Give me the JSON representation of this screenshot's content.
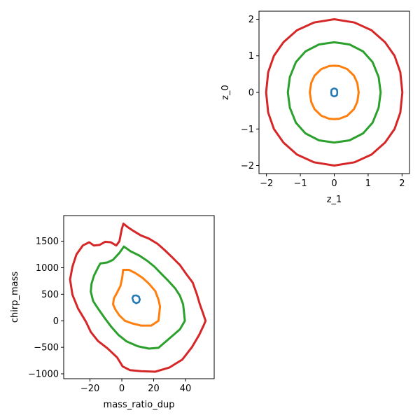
{
  "chart_data": [
    {
      "type": "scatter",
      "title": "",
      "xlabel": "z_1",
      "ylabel": "z_0",
      "xlim": [
        -2.22,
        2.22
      ],
      "ylim": [
        -2.22,
        2.22
      ],
      "xticks": [
        -2,
        -1,
        0,
        1,
        2
      ],
      "yticks": [
        -2,
        -1,
        0,
        1,
        2
      ],
      "xtick_labels": [
        "−2",
        "−1",
        "0",
        "1",
        "2"
      ],
      "ytick_labels": [
        "−2",
        "−1",
        "0",
        "1",
        "2"
      ],
      "grid": false,
      "series": [
        {
          "color": "#1f77b4",
          "points": [
            [
              0.09,
              0.0
            ],
            [
              0.08,
              0.07
            ],
            [
              0.04,
              0.1
            ],
            [
              0.0,
              0.11
            ],
            [
              -0.04,
              0.1
            ],
            [
              -0.08,
              0.07
            ],
            [
              -0.09,
              0.0
            ],
            [
              -0.08,
              -0.07
            ],
            [
              -0.04,
              -0.1
            ],
            [
              0.0,
              -0.11
            ],
            [
              0.04,
              -0.1
            ],
            [
              0.08,
              -0.07
            ],
            [
              0.09,
              0.0
            ]
          ]
        },
        {
          "color": "#ff7f0e",
          "points": [
            [
              0.72,
              0.0
            ],
            [
              0.68,
              0.26
            ],
            [
              0.58,
              0.46
            ],
            [
              0.38,
              0.64
            ],
            [
              0.15,
              0.72
            ],
            [
              0.0,
              0.73
            ],
            [
              -0.15,
              0.72
            ],
            [
              -0.38,
              0.64
            ],
            [
              -0.58,
              0.46
            ],
            [
              -0.68,
              0.26
            ],
            [
              -0.72,
              0.0
            ],
            [
              -0.68,
              -0.26
            ],
            [
              -0.58,
              -0.46
            ],
            [
              -0.38,
              -0.64
            ],
            [
              -0.15,
              -0.72
            ],
            [
              0.0,
              -0.73
            ],
            [
              0.15,
              -0.72
            ],
            [
              0.38,
              -0.64
            ],
            [
              0.58,
              -0.46
            ],
            [
              0.68,
              -0.26
            ],
            [
              0.72,
              0.0
            ]
          ]
        },
        {
          "color": "#2ca02c",
          "points": [
            [
              1.37,
              0.0
            ],
            [
              1.31,
              0.42
            ],
            [
              1.13,
              0.83
            ],
            [
              0.85,
              1.12
            ],
            [
              0.45,
              1.31
            ],
            [
              0.0,
              1.37
            ],
            [
              -0.45,
              1.31
            ],
            [
              -0.85,
              1.12
            ],
            [
              -1.13,
              0.83
            ],
            [
              -1.31,
              0.42
            ],
            [
              -1.37,
              0.0
            ],
            [
              -1.31,
              -0.42
            ],
            [
              -1.13,
              -0.83
            ],
            [
              -0.85,
              -1.12
            ],
            [
              -0.45,
              -1.31
            ],
            [
              0.0,
              -1.37
            ],
            [
              0.45,
              -1.31
            ],
            [
              0.85,
              -1.12
            ],
            [
              1.13,
              -0.83
            ],
            [
              1.31,
              -0.42
            ],
            [
              1.37,
              0.0
            ]
          ]
        },
        {
          "color": "#d62728",
          "points": [
            [
              2.01,
              0.0
            ],
            [
              1.95,
              0.55
            ],
            [
              1.78,
              1.0
            ],
            [
              1.5,
              1.37
            ],
            [
              1.1,
              1.7
            ],
            [
              0.6,
              1.91
            ],
            [
              0.0,
              2.0
            ],
            [
              -0.6,
              1.91
            ],
            [
              -1.1,
              1.7
            ],
            [
              -1.5,
              1.37
            ],
            [
              -1.78,
              1.0
            ],
            [
              -1.95,
              0.55
            ],
            [
              -2.01,
              0.0
            ],
            [
              -1.95,
              -0.55
            ],
            [
              -1.78,
              -1.0
            ],
            [
              -1.5,
              -1.37
            ],
            [
              -1.1,
              -1.7
            ],
            [
              -0.6,
              -1.91
            ],
            [
              0.0,
              -2.0
            ],
            [
              0.6,
              -1.91
            ],
            [
              1.1,
              -1.7
            ],
            [
              1.5,
              -1.37
            ],
            [
              1.78,
              -1.0
            ],
            [
              1.95,
              -0.55
            ],
            [
              2.01,
              0.0
            ]
          ]
        }
      ]
    },
    {
      "type": "scatter",
      "title": "",
      "xlabel": "mass_ratio_dup",
      "ylabel": "chirp_mass",
      "xlim": [
        -36.5,
        58
      ],
      "ylim": [
        -1092,
        1983
      ],
      "xticks": [
        -20,
        0,
        20,
        40
      ],
      "yticks": [
        -1000,
        -500,
        0,
        500,
        1000,
        1500
      ],
      "xtick_labels": [
        "−20",
        "0",
        "20",
        "40"
      ],
      "ytick_labels": [
        "−1000",
        "−500",
        "0",
        "500",
        "1000",
        "1500"
      ],
      "grid": false,
      "series": [
        {
          "color": "#1f77b4",
          "points": [
            [
              6.6,
              430
            ],
            [
              7.3,
              470
            ],
            [
              9.0,
              480
            ],
            [
              10.7,
              455
            ],
            [
              11.3,
              400
            ],
            [
              10.7,
              350
            ],
            [
              9.0,
              330
            ],
            [
              7.3,
              360
            ],
            [
              6.6,
              430
            ]
          ]
        },
        {
          "color": "#ff7f0e",
          "points": [
            [
              0.8,
              960
            ],
            [
              4.5,
              960
            ],
            [
              8.5,
              900
            ],
            [
              13.0,
              810
            ],
            [
              17.0,
              700
            ],
            [
              21.0,
              560
            ],
            [
              23.0,
              400
            ],
            [
              24.0,
              270
            ],
            [
              23.5,
              130
            ],
            [
              23.0,
              0
            ],
            [
              18.5,
              -90
            ],
            [
              12.0,
              -90
            ],
            [
              6.5,
              -50
            ],
            [
              2.0,
              0
            ],
            [
              -1.5,
              100
            ],
            [
              -4.0,
              210
            ],
            [
              -5.5,
              310
            ],
            [
              -5.0,
              420
            ],
            [
              -3.0,
              530
            ],
            [
              -0.8,
              660
            ],
            [
              0.3,
              820
            ],
            [
              0.8,
              960
            ]
          ]
        },
        {
          "color": "#2ca02c",
          "points": [
            [
              1.3,
              1400
            ],
            [
              5.5,
              1310
            ],
            [
              11.0,
              1230
            ],
            [
              16.0,
              1130
            ],
            [
              20.5,
              1020
            ],
            [
              25.0,
              880
            ],
            [
              29.0,
              760
            ],
            [
              33.5,
              610
            ],
            [
              36.5,
              470
            ],
            [
              38.5,
              310
            ],
            [
              39.0,
              170
            ],
            [
              39.6,
              0
            ],
            [
              36.5,
              -160
            ],
            [
              30.0,
              -330
            ],
            [
              23.0,
              -510
            ],
            [
              17.0,
              -525
            ],
            [
              10.0,
              -480
            ],
            [
              3.0,
              -390
            ],
            [
              -2.0,
              -270
            ],
            [
              -6.5,
              -120
            ],
            [
              -10.5,
              40
            ],
            [
              -14.5,
              210
            ],
            [
              -18.0,
              370
            ],
            [
              -19.5,
              550
            ],
            [
              -19.0,
              700
            ],
            [
              -17.5,
              850
            ],
            [
              -15.0,
              1000
            ],
            [
              -13.5,
              1080
            ],
            [
              -9.0,
              1100
            ],
            [
              -5.5,
              1150
            ],
            [
              -1.5,
              1280
            ],
            [
              1.3,
              1400
            ]
          ]
        },
        {
          "color": "#d62728",
          "points": [
            [
              1.0,
              1830
            ],
            [
              4.0,
              1760
            ],
            [
              7.5,
              1690
            ],
            [
              12.0,
              1610
            ],
            [
              17.0,
              1550
            ],
            [
              22.5,
              1450
            ],
            [
              27.0,
              1330
            ],
            [
              31.5,
              1200
            ],
            [
              36.5,
              1050
            ],
            [
              40.5,
              880
            ],
            [
              44.5,
              720
            ],
            [
              47.0,
              510
            ],
            [
              49.0,
              310
            ],
            [
              51.0,
              140
            ],
            [
              52.6,
              0
            ],
            [
              51.5,
              -80
            ],
            [
              48.5,
              -270
            ],
            [
              44.0,
              -500
            ],
            [
              38.0,
              -730
            ],
            [
              30.0,
              -880
            ],
            [
              21.0,
              -960
            ],
            [
              12.0,
              -950
            ],
            [
              5.0,
              -930
            ],
            [
              0.5,
              -860
            ],
            [
              -3.0,
              -690
            ],
            [
              -9.0,
              -520
            ],
            [
              -15.0,
              -380
            ],
            [
              -19.5,
              -210
            ],
            [
              -22.5,
              -20
            ],
            [
              -27.5,
              230
            ],
            [
              -31.0,
              490
            ],
            [
              -32.5,
              780
            ],
            [
              -31.0,
              1020
            ],
            [
              -28.5,
              1250
            ],
            [
              -24.5,
              1420
            ],
            [
              -20.5,
              1480
            ],
            [
              -17.5,
              1420
            ],
            [
              -14.0,
              1430
            ],
            [
              -10.5,
              1490
            ],
            [
              -7.0,
              1480
            ],
            [
              -3.5,
              1420
            ],
            [
              -1.5,
              1500
            ],
            [
              0.0,
              1730
            ],
            [
              1.0,
              1830
            ]
          ]
        }
      ]
    }
  ]
}
